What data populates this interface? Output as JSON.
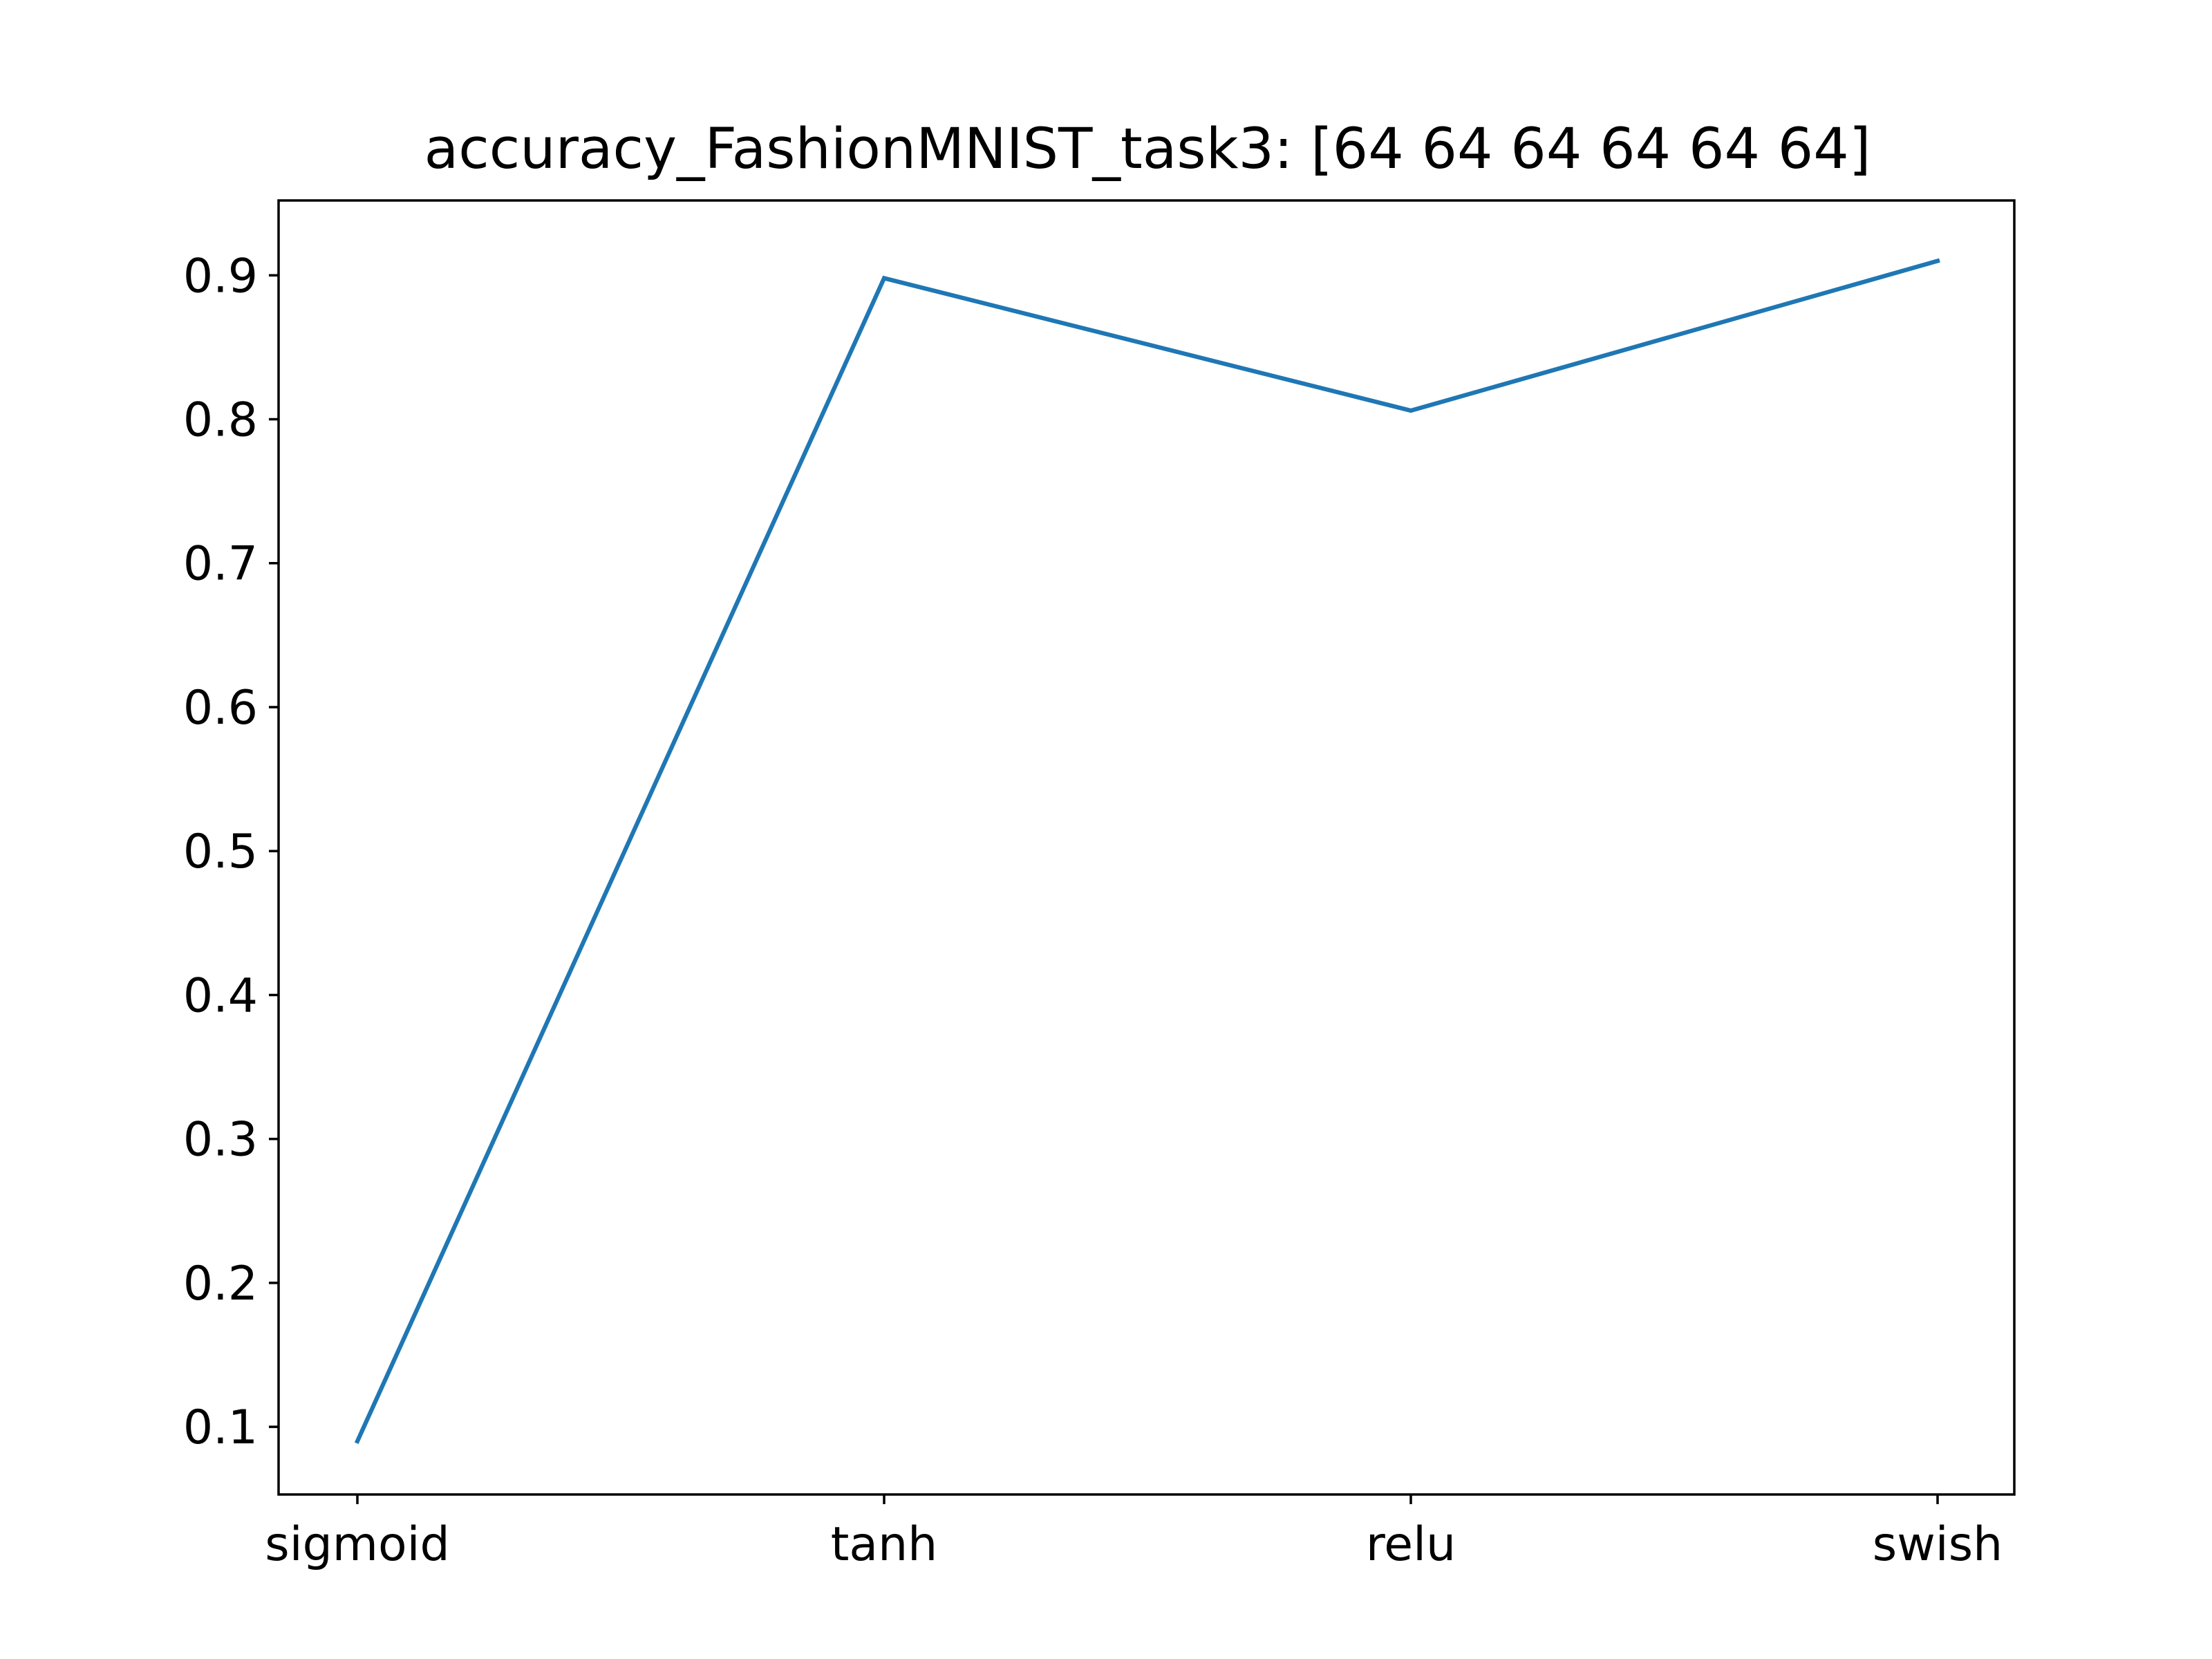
{
  "chart_data": {
    "type": "line",
    "title": "accuracy_FashionMNIST_task3: [64 64 64 64 64 64]",
    "xlabel": "",
    "ylabel": "",
    "categories": [
      "sigmoid",
      "tanh",
      "relu",
      "swish"
    ],
    "series": [
      {
        "values": [
          0.09,
          0.898,
          0.806,
          0.91
        ],
        "color": "#1f77b4"
      }
    ],
    "ylim": [
      0.053,
      0.952
    ],
    "yticks": [
      0.1,
      0.2,
      0.3,
      0.4,
      0.5,
      0.6,
      0.7,
      0.8,
      0.9
    ],
    "ytick_labels": [
      "0.1",
      "0.2",
      "0.3",
      "0.4",
      "0.5",
      "0.6",
      "0.7",
      "0.8",
      "0.9"
    ],
    "grid": false,
    "legend": false
  }
}
